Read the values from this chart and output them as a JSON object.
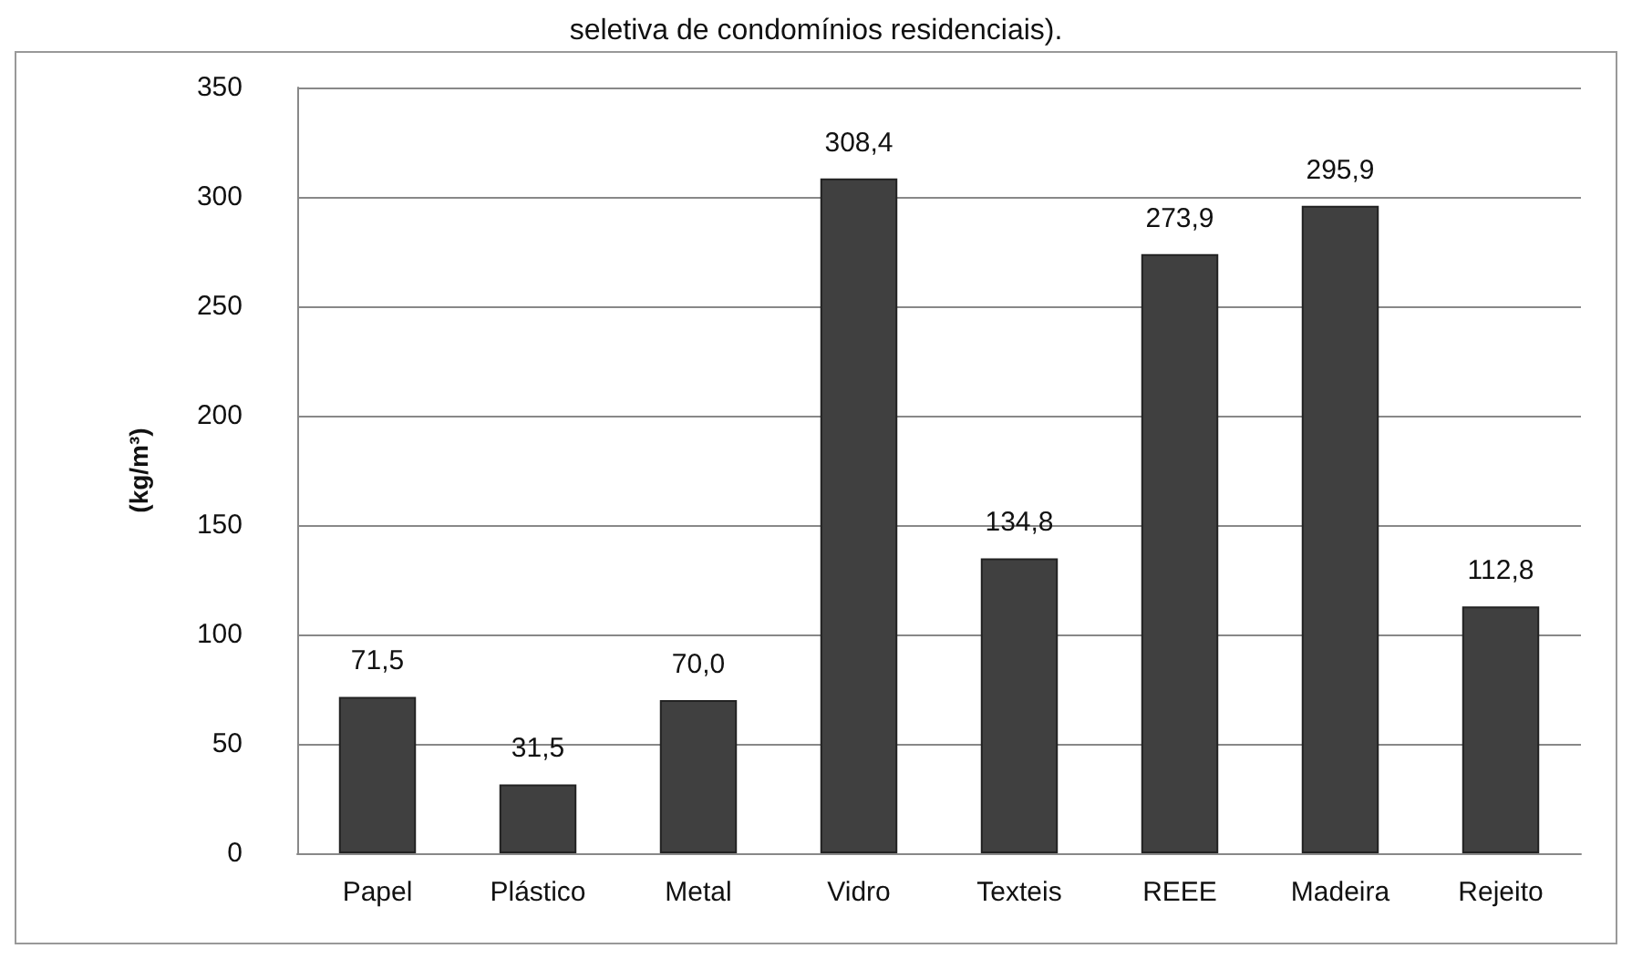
{
  "chart_data": {
    "type": "bar",
    "title": "seletiva de condomínios residenciais).",
    "ylabel": "(kg/m³)",
    "categories": [
      "Papel",
      "Plástico",
      "Metal",
      "Vidro",
      "Texteis",
      "REEE",
      "Madeira",
      "Rejeito"
    ],
    "values": [
      71.5,
      31.5,
      70.0,
      308.4,
      134.8,
      273.9,
      295.9,
      112.8
    ],
    "value_labels": [
      "71,5",
      "31,5",
      "70,0",
      "308,4",
      "134,8",
      "273,9",
      "295,9",
      "112,8"
    ],
    "color": "#404040",
    "ylim": [
      0,
      350
    ],
    "yticks": [
      0,
      50,
      100,
      150,
      200,
      250,
      300,
      350
    ],
    "grid": "y"
  }
}
